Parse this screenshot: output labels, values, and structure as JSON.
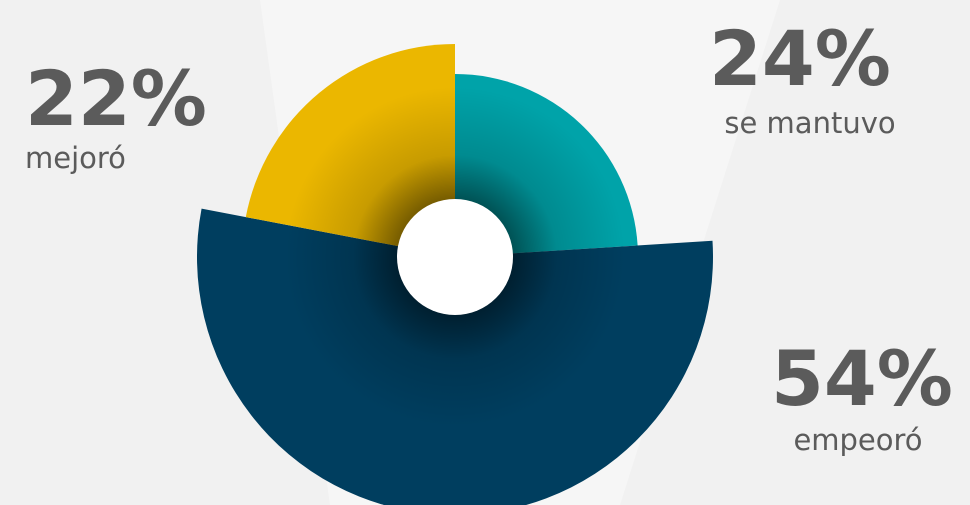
{
  "chart_data": {
    "type": "pie",
    "categories": [
      "se mantuvo",
      "empeoró",
      "mejoró"
    ],
    "values": [
      24,
      54,
      22
    ],
    "value_labels": [
      "24%",
      "54%",
      "22%"
    ],
    "colors": [
      "#00a3a9",
      "#003e5f",
      "#ebb700"
    ]
  }
}
